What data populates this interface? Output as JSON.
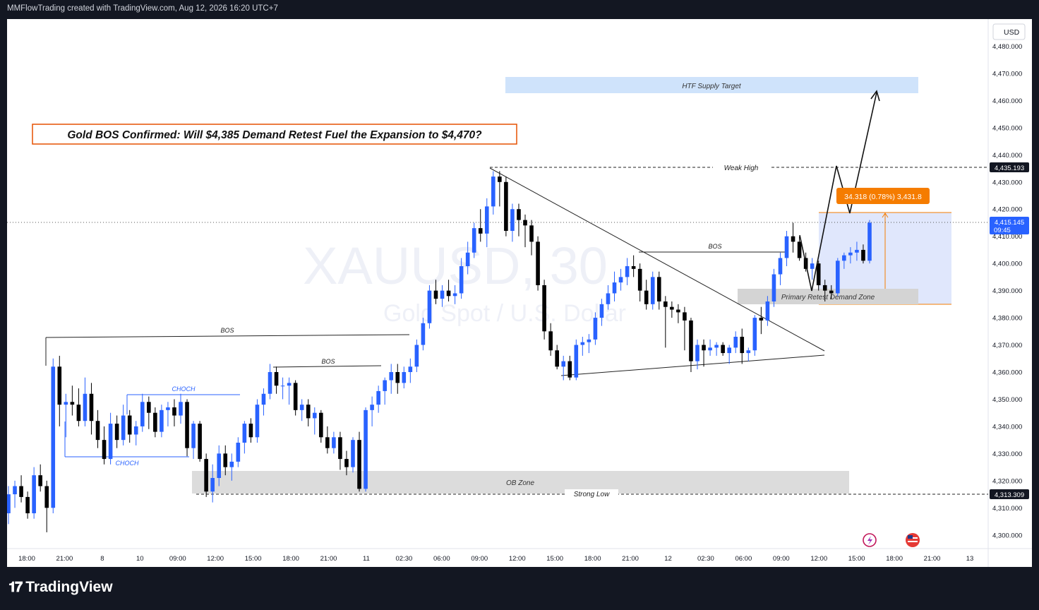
{
  "header": {
    "attribution": "MMFlowTrading created with TradingView.com, Aug 12, 2026 16:20 UTC+7"
  },
  "footer": {
    "brand": "TradingView"
  },
  "chart_data": {
    "type": "candlestick",
    "title": "Gold BOS Confirmed: Will $4,385 Demand Retest Fuel the Expansion to $4,470?",
    "watermark": {
      "symbol": "XAUUSD, 30",
      "name": "Gold Spot / U.S. Dollar"
    },
    "currency": "USD",
    "ylim": [
      4295,
      4490
    ],
    "y_ticks": [
      "4,480.000",
      "4,470.000",
      "4,460.000",
      "4,450.000",
      "4,440.000",
      "4,430.000",
      "4,420.000",
      "4,410.000",
      "4,400.000",
      "4,390.000",
      "4,380.000",
      "4,370.000",
      "4,360.000",
      "4,350.000",
      "4,340.000",
      "4,330.000",
      "4,320.000",
      "4,310.000",
      "4,300.000"
    ],
    "x_ticks": [
      "18:00",
      "21:00",
      "8",
      "10",
      "09:00",
      "12:00",
      "15:00",
      "18:00",
      "21:00",
      "11",
      "02:30",
      "06:00",
      "09:00",
      "12:00",
      "15:00",
      "18:00",
      "21:00",
      "12",
      "02:30",
      "06:00",
      "09:00",
      "12:00",
      "15:00",
      "18:00",
      "21:00",
      "13"
    ],
    "price_labels": {
      "weak_high": "4,435.193",
      "current": "4,415.145",
      "countdown": "09:45",
      "strong_low": "4,313.309"
    },
    "annotations": {
      "htf_supply": "HTF Supply Target",
      "weak_high": "Weak High",
      "strong_low": "Strong Low",
      "ob_zone": "OB Zone",
      "demand_zone": "Primary Retest Demand Zone",
      "bos_1": "BOS",
      "bos_2": "BOS",
      "bos_3": "BOS",
      "choch_1": "CHOCH",
      "choch_2": "CHOCH",
      "measure": "34.318 (0.78%) 3,431.8"
    },
    "zones": {
      "htf_supply": [
        4463,
        4469
      ],
      "demand": [
        4384,
        4390
      ],
      "ob": [
        4313.3,
        4321
      ],
      "measure_box": [
        4384,
        4418
      ]
    },
    "colors": {
      "up": "#2962ff",
      "down": "#000000",
      "measure": "#f57c00",
      "title_border": "#e65100"
    },
    "candles": [
      [
        4308,
        4318,
        4304,
        4315
      ],
      [
        4315,
        4320,
        4310,
        4318
      ],
      [
        4318,
        4322,
        4312,
        4314
      ],
      [
        4314,
        4316,
        4306,
        4308
      ],
      [
        4308,
        4325,
        4306,
        4322
      ],
      [
        4322,
        4326,
        4316,
        4318
      ],
      [
        4318,
        4320,
        4301,
        4310
      ],
      [
        4310,
        4365,
        4308,
        4362
      ],
      [
        4362,
        4366,
        4340,
        4348
      ],
      [
        4348,
        4352,
        4336,
        4349
      ],
      [
        4349,
        4355,
        4344,
        4348
      ],
      [
        4348,
        4354,
        4340,
        4342
      ],
      [
        4342,
        4358,
        4340,
        4352
      ],
      [
        4352,
        4356,
        4337,
        4342
      ],
      [
        4342,
        4346,
        4332,
        4335
      ],
      [
        4335,
        4340,
        4326,
        4328
      ],
      [
        4328,
        4345,
        4326,
        4341
      ],
      [
        4341,
        4344,
        4332,
        4335
      ],
      [
        4335,
        4348,
        4333,
        4344
      ],
      [
        4344,
        4346,
        4334,
        4337
      ],
      [
        4337,
        4342,
        4333,
        4340
      ],
      [
        4340,
        4352,
        4338,
        4349
      ],
      [
        4349,
        4351,
        4339,
        4345
      ],
      [
        4345,
        4347,
        4336,
        4338
      ],
      [
        4338,
        4348,
        4336,
        4346
      ],
      [
        4346,
        4349,
        4340,
        4347
      ],
      [
        4347,
        4350,
        4340,
        4344
      ],
      [
        4344,
        4352,
        4341,
        4349
      ],
      [
        4349,
        4350,
        4329,
        4332
      ],
      [
        4332,
        4342,
        4328,
        4341
      ],
      [
        4341,
        4342,
        4327,
        4328
      ],
      [
        4328,
        4330,
        4314,
        4316
      ],
      [
        4316,
        4326,
        4312,
        4321
      ],
      [
        4321,
        4333,
        4318,
        4330
      ],
      [
        4330,
        4333,
        4322,
        4325
      ],
      [
        4325,
        4330,
        4320,
        4327
      ],
      [
        4327,
        4336,
        4325,
        4334
      ],
      [
        4334,
        4342,
        4330,
        4341
      ],
      [
        4341,
        4343,
        4334,
        4336
      ],
      [
        4336,
        4350,
        4334,
        4348
      ],
      [
        4348,
        4354,
        4344,
        4352
      ],
      [
        4352,
        4363,
        4350,
        4360
      ],
      [
        4360,
        4362,
        4352,
        4355
      ],
      [
        4355,
        4358,
        4350,
        4355
      ],
      [
        4355,
        4358,
        4348,
        4356
      ],
      [
        4356,
        4357,
        4344,
        4346
      ],
      [
        4346,
        4350,
        4342,
        4348
      ],
      [
        4348,
        4350,
        4340,
        4343
      ],
      [
        4343,
        4347,
        4337,
        4345
      ],
      [
        4345,
        4346,
        4334,
        4336
      ],
      [
        4336,
        4340,
        4330,
        4332
      ],
      [
        4332,
        4338,
        4330,
        4336
      ],
      [
        4336,
        4338,
        4324,
        4328
      ],
      [
        4328,
        4331,
        4322,
        4325
      ],
      [
        4325,
        4336,
        4323,
        4335
      ],
      [
        4335,
        4338,
        4316,
        4317
      ],
      [
        4317,
        4347,
        4316,
        4346
      ],
      [
        4346,
        4351,
        4340,
        4348
      ],
      [
        4348,
        4355,
        4345,
        4353
      ],
      [
        4353,
        4358,
        4348,
        4357
      ],
      [
        4357,
        4363,
        4352,
        4360
      ],
      [
        4360,
        4363,
        4352,
        4356
      ],
      [
        4356,
        4362,
        4354,
        4360
      ],
      [
        4360,
        4365,
        4356,
        4362
      ],
      [
        4362,
        4372,
        4360,
        4370
      ],
      [
        4370,
        4380,
        4368,
        4378
      ],
      [
        4378,
        4392,
        4376,
        4390
      ],
      [
        4390,
        4394,
        4385,
        4387
      ],
      [
        4387,
        4392,
        4384,
        4390
      ],
      [
        4390,
        4394,
        4386,
        4388
      ],
      [
        4388,
        4392,
        4385,
        4389
      ],
      [
        4389,
        4402,
        4387,
        4399
      ],
      [
        4399,
        4408,
        4396,
        4404
      ],
      [
        4404,
        4415,
        4402,
        4413
      ],
      [
        4413,
        4420,
        4408,
        4411
      ],
      [
        4411,
        4424,
        4406,
        4421
      ],
      [
        4421,
        4434,
        4418,
        4432
      ],
      [
        4432,
        4434,
        4421,
        4430
      ],
      [
        4430,
        4432,
        4410,
        4412
      ],
      [
        4412,
        4422,
        4408,
        4420
      ],
      [
        4420,
        4422,
        4410,
        4416
      ],
      [
        4416,
        4418,
        4406,
        4414
      ],
      [
        4414,
        4416,
        4403,
        4408
      ],
      [
        4408,
        4410,
        4390,
        4392
      ],
      [
        4392,
        4394,
        4372,
        4375
      ],
      [
        4375,
        4378,
        4366,
        4368
      ],
      [
        4368,
        4370,
        4361,
        4362
      ],
      [
        4362,
        4366,
        4357,
        4364
      ],
      [
        4364,
        4366,
        4357,
        4358
      ],
      [
        4358,
        4372,
        4357,
        4370
      ],
      [
        4370,
        4373,
        4366,
        4371
      ],
      [
        4371,
        4374,
        4367,
        4372
      ],
      [
        4372,
        4382,
        4370,
        4380
      ],
      [
        4380,
        4387,
        4377,
        4385
      ],
      [
        4385,
        4392,
        4383,
        4389
      ],
      [
        4389,
        4397,
        4386,
        4393
      ],
      [
        4393,
        4398,
        4390,
        4395
      ],
      [
        4395,
        4402,
        4392,
        4399
      ],
      [
        4399,
        4403,
        4395,
        4398
      ],
      [
        4398,
        4400,
        4386,
        4390
      ],
      [
        4390,
        4394,
        4383,
        4385
      ],
      [
        4385,
        4397,
        4383,
        4395
      ],
      [
        4395,
        4397,
        4383,
        4386
      ],
      [
        4386,
        4388,
        4369,
        4384
      ],
      [
        4384,
        4386,
        4380,
        4383
      ],
      [
        4383,
        4385,
        4378,
        4382
      ],
      [
        4382,
        4384,
        4368,
        4379
      ],
      [
        4379,
        4380,
        4360,
        4364
      ],
      [
        4364,
        4372,
        4361,
        4370
      ],
      [
        4370,
        4372,
        4362,
        4368
      ],
      [
        4368,
        4372,
        4366,
        4369
      ],
      [
        4369,
        4371,
        4366,
        4370
      ],
      [
        4370,
        4371,
        4366,
        4367
      ],
      [
        4367,
        4370,
        4363,
        4369
      ],
      [
        4369,
        4375,
        4367,
        4373
      ],
      [
        4373,
        4376,
        4363,
        4367
      ],
      [
        4367,
        4369,
        4364,
        4368
      ],
      [
        4368,
        4381,
        4366,
        4380
      ],
      [
        4380,
        4384,
        4374,
        4379
      ],
      [
        4379,
        4388,
        4377,
        4386
      ],
      [
        4386,
        4398,
        4384,
        4396
      ],
      [
        4396,
        4404,
        4392,
        4402
      ],
      [
        4402,
        4412,
        4399,
        4410
      ],
      [
        4410,
        4415,
        4404,
        4408
      ],
      [
        4408,
        4410,
        4401,
        4402
      ],
      [
        4402,
        4404,
        4397,
        4398
      ],
      [
        4398,
        4402,
        4394,
        4400
      ],
      [
        4400,
        4401,
        4390,
        4392
      ],
      [
        4392,
        4394,
        4386,
        4390
      ],
      [
        4390,
        4392,
        4387,
        4389
      ],
      [
        4389,
        4402,
        4388,
        4401
      ],
      [
        4401,
        4404,
        4398,
        4403
      ],
      [
        4403,
        4406,
        4400,
        4404
      ],
      [
        4404,
        4408,
        4401,
        4405
      ],
      [
        4405,
        4407,
        4400,
        4401
      ],
      [
        4401,
        4416,
        4400,
        4415
      ]
    ]
  }
}
